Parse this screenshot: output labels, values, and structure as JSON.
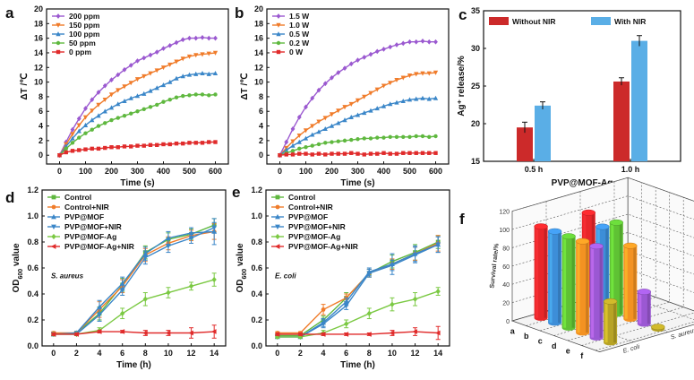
{
  "chart_data": [
    {
      "panel": "a",
      "type": "line",
      "xlabel": "Time (s)",
      "ylabel": "ΔT /℃",
      "xlim": [
        -50,
        650
      ],
      "ylim": [
        -1.2,
        20
      ],
      "xticks": [
        0,
        100,
        200,
        300,
        400,
        500,
        600
      ],
      "yticks": [
        0,
        2,
        4,
        6,
        8,
        10,
        12,
        14,
        16,
        18,
        20
      ],
      "x": [
        0,
        25,
        50,
        75,
        100,
        125,
        150,
        175,
        200,
        225,
        250,
        275,
        300,
        325,
        350,
        375,
        400,
        425,
        450,
        475,
        500,
        525,
        550,
        575,
        600
      ],
      "legend_position": "top-left",
      "series": [
        {
          "name": "200 ppm",
          "color": "#9b59d0",
          "marker": "diamond",
          "values": [
            0,
            1.8,
            3.5,
            5,
            6.4,
            7.6,
            8.6,
            9.5,
            10.3,
            11,
            11.7,
            12.3,
            12.9,
            13.3,
            13.7,
            14.1,
            14.6,
            15,
            15.4,
            15.8,
            16,
            16,
            16.1,
            16,
            16
          ]
        },
        {
          "name": "150 ppm",
          "color": "#f07c2b",
          "marker": "triangle-down",
          "values": [
            0,
            1.5,
            2.9,
            4.1,
            5.2,
            6.1,
            6.9,
            7.6,
            8.3,
            8.9,
            9.4,
            9.9,
            10.4,
            10.8,
            11.2,
            11.6,
            12,
            12.4,
            12.8,
            13.2,
            13.5,
            13.7,
            13.8,
            13.9,
            14
          ]
        },
        {
          "name": "100 ppm",
          "color": "#3a86c8",
          "marker": "triangle-up",
          "values": [
            0,
            1.2,
            2.3,
            3.3,
            4.1,
            4.8,
            5.4,
            6,
            6.5,
            7,
            7.4,
            7.8,
            8.1,
            8.4,
            8.8,
            9.2,
            9.6,
            10,
            10.5,
            10.8,
            11,
            11.1,
            11.2,
            11.1,
            11.2
          ]
        },
        {
          "name": "50 ppm",
          "color": "#5fb83f",
          "marker": "circle",
          "values": [
            0,
            0.9,
            1.7,
            2.4,
            3,
            3.5,
            4,
            4.4,
            4.8,
            5.1,
            5.4,
            5.7,
            6,
            6.3,
            6.6,
            6.9,
            7.3,
            7.6,
            7.9,
            8.1,
            8.2,
            8.3,
            8.3,
            8.2,
            8.3
          ]
        },
        {
          "name": "0 ppm",
          "color": "#e02b2b",
          "marker": "square",
          "values": [
            0,
            0.4,
            0.6,
            0.7,
            0.8,
            0.9,
            0.9,
            1,
            1.1,
            1.1,
            1.2,
            1.2,
            1.3,
            1.3,
            1.4,
            1.4,
            1.5,
            1.5,
            1.6,
            1.6,
            1.7,
            1.7,
            1.7,
            1.8,
            1.8
          ]
        }
      ]
    },
    {
      "panel": "b",
      "type": "line",
      "xlabel": "Time (s)",
      "ylabel": "ΔT /℃",
      "xlim": [
        -50,
        650
      ],
      "ylim": [
        -1.2,
        20
      ],
      "xticks": [
        0,
        100,
        200,
        300,
        400,
        500,
        600
      ],
      "yticks": [
        0,
        2,
        4,
        6,
        8,
        10,
        12,
        14,
        16,
        18,
        20
      ],
      "x": [
        0,
        25,
        50,
        75,
        100,
        125,
        150,
        175,
        200,
        225,
        250,
        275,
        300,
        325,
        350,
        375,
        400,
        425,
        450,
        475,
        500,
        525,
        550,
        575,
        600
      ],
      "legend_position": "top-left",
      "series": [
        {
          "name": "1.5 W",
          "color": "#9b59d0",
          "marker": "diamond",
          "values": [
            0,
            1.8,
            3.6,
            5.2,
            6.6,
            7.8,
            8.9,
            9.8,
            10.6,
            11.3,
            11.9,
            12.5,
            13,
            13.4,
            13.8,
            14.2,
            14.5,
            14.8,
            15.1,
            15.3,
            15.5,
            15.5,
            15.6,
            15.5,
            15.5
          ]
        },
        {
          "name": "1.0 W",
          "color": "#f07c2b",
          "marker": "triangle-down",
          "values": [
            0,
            1,
            1.9,
            2.7,
            3.4,
            4,
            4.6,
            5.1,
            5.6,
            6.1,
            6.6,
            7,
            7.5,
            8,
            8.5,
            9,
            9.5,
            9.9,
            10.3,
            10.6,
            10.9,
            11.1,
            11.2,
            11.2,
            11.3
          ]
        },
        {
          "name": "0.5 W",
          "color": "#3a86c8",
          "marker": "triangle-up",
          "values": [
            0,
            0.7,
            1.3,
            1.8,
            2.3,
            2.8,
            3.2,
            3.6,
            4,
            4.4,
            4.8,
            5.2,
            5.5,
            5.8,
            6.1,
            6.4,
            6.7,
            7,
            7.2,
            7.4,
            7.6,
            7.7,
            7.8,
            7.7,
            7.8
          ]
        },
        {
          "name": "0.2 W",
          "color": "#5fb83f",
          "marker": "circle",
          "values": [
            0,
            0.3,
            0.6,
            0.9,
            1.1,
            1.3,
            1.5,
            1.7,
            1.8,
            1.9,
            2,
            2.1,
            2.2,
            2.3,
            2.3,
            2.4,
            2.4,
            2.5,
            2.5,
            2.5,
            2.5,
            2.6,
            2.6,
            2.5,
            2.6
          ]
        },
        {
          "name": "0 W",
          "color": "#e02b2b",
          "marker": "square",
          "values": [
            0,
            0.1,
            0.1,
            0.2,
            0.2,
            0.1,
            0.2,
            0.1,
            0.2,
            0.2,
            0.2,
            0.3,
            0.2,
            0.1,
            0.2,
            0.2,
            0.3,
            0.2,
            0.2,
            0.3,
            0.3,
            0.3,
            0.3,
            0.3,
            0.3
          ]
        }
      ]
    },
    {
      "panel": "c",
      "type": "bar",
      "xlabel": "PVP@MOF-Ag",
      "ylabel": "Ag⁺ release/%",
      "categories": [
        "0.5 h",
        "1.0 h"
      ],
      "ylim": [
        15,
        35
      ],
      "yticks": [
        15,
        20,
        25,
        30,
        35
      ],
      "legend_position": "top",
      "series": [
        {
          "name": "Without NIR",
          "color": "#cc2a2a",
          "values": [
            19.5,
            25.6
          ],
          "errors": [
            0.7,
            0.5
          ]
        },
        {
          "name": "With NIR",
          "color": "#5aaee6",
          "values": [
            22.4,
            31.0
          ],
          "errors": [
            0.5,
            0.7
          ]
        }
      ]
    },
    {
      "panel": "d",
      "type": "line",
      "xlabel": "Time (h)",
      "ylabel": "OD600 value",
      "ylabel_main": "OD",
      "ylabel_sub": "600",
      "ylabel_rest": " value",
      "annotation": "S. aureus",
      "xlim": [
        -1,
        15
      ],
      "ylim": [
        0,
        1.2
      ],
      "xticks": [
        0,
        2,
        4,
        6,
        8,
        10,
        12,
        14
      ],
      "yticks": [
        0,
        0.2,
        0.4,
        0.6,
        0.8,
        1.0,
        1.2
      ],
      "ytick_labels": [
        "0.0",
        "0.2",
        "0.4",
        "0.6",
        "0.8",
        "1.0",
        "1.2"
      ],
      "x": [
        0,
        2,
        4,
        6,
        8,
        10,
        12,
        14
      ],
      "legend_position": "top-left",
      "series": [
        {
          "name": "Control",
          "color": "#5fb83f",
          "marker": "square",
          "values": [
            0.09,
            0.1,
            0.25,
            0.47,
            0.72,
            0.82,
            0.86,
            0.93
          ],
          "errors": [
            0.01,
            0.01,
            0.05,
            0.05,
            0.05,
            0.05,
            0.04,
            0.05
          ]
        },
        {
          "name": "Control+NIR",
          "color": "#f07c2b",
          "marker": "circle",
          "values": [
            0.1,
            0.1,
            0.28,
            0.46,
            0.7,
            0.79,
            0.85,
            0.88
          ],
          "errors": [
            0.01,
            0.01,
            0.06,
            0.05,
            0.05,
            0.05,
            0.04,
            0.06
          ]
        },
        {
          "name": "PVP@MOF",
          "color": "#3a86c8",
          "marker": "triangle-up",
          "values": [
            0.09,
            0.1,
            0.3,
            0.48,
            0.71,
            0.83,
            0.87,
            0.88
          ],
          "errors": [
            0.01,
            0.01,
            0.05,
            0.05,
            0.05,
            0.05,
            0.04,
            0.1
          ]
        },
        {
          "name": "PVP@MOF+NIR",
          "color": "#3a86c8",
          "marker": "triangle-down",
          "values": [
            0.09,
            0.09,
            0.24,
            0.43,
            0.68,
            0.77,
            0.83,
            0.91
          ],
          "errors": [
            0.01,
            0.01,
            0.05,
            0.04,
            0.05,
            0.05,
            0.04,
            0.04
          ]
        },
        {
          "name": "PVP@MOF-Ag",
          "color": "#7bc943",
          "marker": "diamond",
          "values": [
            0.09,
            0.09,
            0.12,
            0.25,
            0.36,
            0.41,
            0.46,
            0.51
          ],
          "errors": [
            0.01,
            0.01,
            0.02,
            0.04,
            0.05,
            0.04,
            0.03,
            0.05
          ]
        },
        {
          "name": "PVP@MOF-Ag+NIR",
          "color": "#e02b2b",
          "marker": "triangle-left",
          "values": [
            0.09,
            0.09,
            0.11,
            0.11,
            0.1,
            0.1,
            0.1,
            0.11
          ],
          "errors": [
            0.01,
            0.01,
            0.01,
            0.01,
            0.02,
            0.02,
            0.04,
            0.05
          ]
        }
      ]
    },
    {
      "panel": "e",
      "type": "line",
      "xlabel": "Time (h)",
      "ylabel": "OD600 value",
      "ylabel_main": "OD",
      "ylabel_sub": "600",
      "ylabel_rest": " value",
      "annotation": "E. coli",
      "xlim": [
        -1,
        15
      ],
      "ylim": [
        0,
        1.2
      ],
      "xticks": [
        0,
        2,
        4,
        6,
        8,
        10,
        12,
        14
      ],
      "yticks": [
        0,
        0.2,
        0.4,
        0.6,
        0.8,
        1.0,
        1.2
      ],
      "ytick_labels": [
        "0.0",
        "0.2",
        "0.4",
        "0.6",
        "0.8",
        "1.0",
        "1.2"
      ],
      "x": [
        0,
        2,
        4,
        6,
        8,
        10,
        12,
        14
      ],
      "legend_position": "top-left",
      "series": [
        {
          "name": "Control",
          "color": "#5fb83f",
          "marker": "square",
          "values": [
            0.08,
            0.08,
            0.2,
            0.37,
            0.56,
            0.65,
            0.72,
            0.8
          ],
          "errors": [
            0.01,
            0.01,
            0.03,
            0.04,
            0.03,
            0.05,
            0.06,
            0.05
          ]
        },
        {
          "name": "Control+NIR",
          "color": "#f07c2b",
          "marker": "circle",
          "values": [
            0.1,
            0.1,
            0.28,
            0.37,
            0.56,
            0.63,
            0.71,
            0.79
          ],
          "errors": [
            0.01,
            0.01,
            0.04,
            0.03,
            0.03,
            0.04,
            0.05,
            0.06
          ]
        },
        {
          "name": "PVP@MOF",
          "color": "#3a86c8",
          "marker": "triangle-up",
          "values": [
            0.07,
            0.07,
            0.18,
            0.34,
            0.57,
            0.63,
            0.71,
            0.78
          ],
          "errors": [
            0.01,
            0.01,
            0.03,
            0.03,
            0.03,
            0.08,
            0.06,
            0.06
          ]
        },
        {
          "name": "PVP@MOF+NIR",
          "color": "#3a86c8",
          "marker": "triangle-down",
          "values": [
            0.07,
            0.07,
            0.17,
            0.31,
            0.56,
            0.62,
            0.7,
            0.78
          ],
          "errors": [
            0.01,
            0.01,
            0.03,
            0.03,
            0.03,
            0.04,
            0.06,
            0.06
          ]
        },
        {
          "name": "PVP@MOF-Ag",
          "color": "#7bc943",
          "marker": "diamond",
          "values": [
            0.07,
            0.07,
            0.1,
            0.17,
            0.25,
            0.32,
            0.36,
            0.42
          ],
          "errors": [
            0.01,
            0.01,
            0.02,
            0.03,
            0.04,
            0.05,
            0.05,
            0.03
          ]
        },
        {
          "name": "PVP@MOF-Ag+NIR",
          "color": "#e02b2b",
          "marker": "triangle-left",
          "values": [
            0.09,
            0.09,
            0.09,
            0.09,
            0.09,
            0.1,
            0.11,
            0.1
          ],
          "errors": [
            0.01,
            0.01,
            0.01,
            0.01,
            0.01,
            0.02,
            0.03,
            0.05
          ]
        }
      ]
    },
    {
      "panel": "f",
      "type": "bar",
      "chart_style": "3d-bar",
      "ylabel": "Survival rate/%",
      "zlim": [
        0,
        120
      ],
      "zticks": [
        0,
        20,
        40,
        60,
        80,
        100,
        120
      ],
      "categories": [
        "a",
        "b",
        "c",
        "d",
        "e",
        "f"
      ],
      "series": [
        {
          "name": "S. aureus",
          "values": [
            100,
            90,
            100,
            80,
            35,
            2
          ]
        },
        {
          "name": "E. coli",
          "values": [
            100,
            100,
            100,
            100,
            100,
            45
          ]
        }
      ],
      "bar_colors": [
        "#e8262a",
        "#3d8ed8",
        "#5fc234",
        "#f39222",
        "#9b58d3",
        "#b7a325"
      ]
    }
  ]
}
